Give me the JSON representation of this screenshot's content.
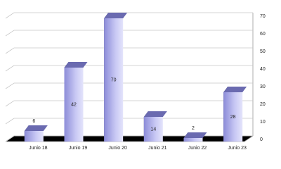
{
  "chart_data": {
    "type": "bar3d",
    "categories": [
      "Junio 18",
      "Junio 19",
      "Junio 20",
      "Junio 21",
      "Junio 22",
      "Junio 23"
    ],
    "values": [
      6,
      42,
      70,
      14,
      2,
      28
    ],
    "color": "#a8a8ec",
    "ylim": [
      0,
      70
    ],
    "yticks": [
      0,
      10,
      20,
      30,
      40,
      50,
      60,
      70
    ],
    "grid": true
  }
}
